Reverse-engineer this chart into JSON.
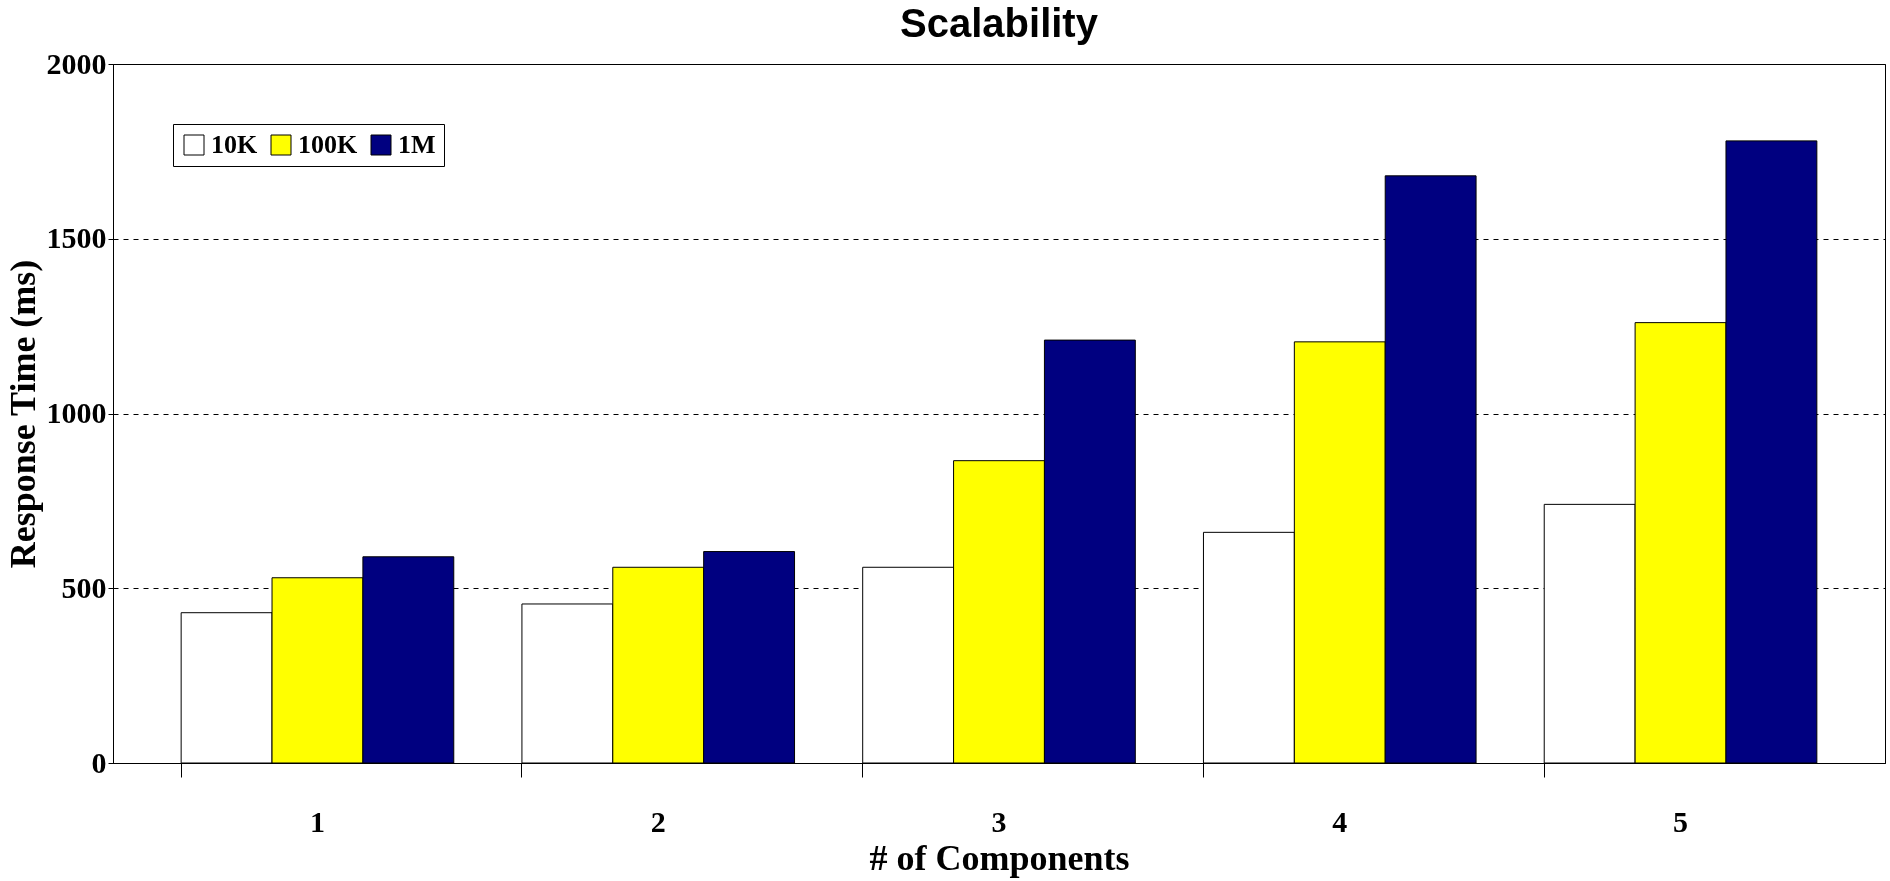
{
  "chart_data": {
    "type": "bar",
    "title": "Scalability",
    "xlabel": "# of Components",
    "ylabel": "Response Time (ms)",
    "categories": [
      "1",
      "2",
      "3",
      "4",
      "5"
    ],
    "series": [
      {
        "name": "10K",
        "color": "#ffffff",
        "values": [
          430,
          455,
          560,
          660,
          740
        ]
      },
      {
        "name": "100K",
        "color": "#ffff00",
        "values": [
          530,
          560,
          865,
          1205,
          1260
        ]
      },
      {
        "name": "1M",
        "color": "#000080",
        "values": [
          590,
          605,
          1210,
          1680,
          1780
        ]
      }
    ],
    "ylim": [
      0,
      2000
    ],
    "yticks": [
      0,
      500,
      1000,
      1500,
      2000
    ],
    "grid": "y",
    "legend": "top left"
  }
}
